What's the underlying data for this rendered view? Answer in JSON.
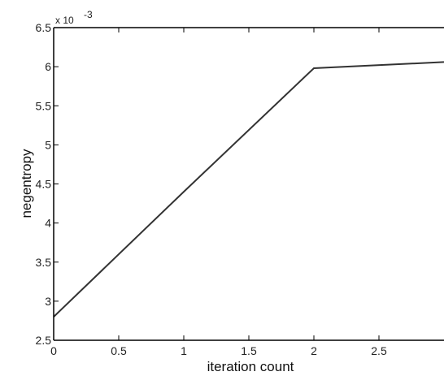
{
  "chart_data": {
    "type": "line",
    "xlabel": "iteration count",
    "ylabel": "negentropy",
    "y_multiplier": "x 10",
    "y_multiplier_exponent": "-3",
    "xlim": [
      0,
      3
    ],
    "ylim": [
      2.5,
      6.5
    ],
    "x_ticks": [
      "0",
      "0.5",
      "1",
      "1.5",
      "2",
      "2.5"
    ],
    "y_ticks": [
      "2.5",
      "3",
      "3.5",
      "4",
      "4.5",
      "5",
      "5.5",
      "6",
      "6.5"
    ],
    "grid": false,
    "series": [
      {
        "x": [
          0,
          1,
          2,
          3
        ],
        "y": [
          2.8,
          4.4,
          5.98,
          6.06
        ]
      }
    ],
    "colors": {
      "line": "#333333",
      "axes": "#000000",
      "background": "#ffffff"
    }
  }
}
